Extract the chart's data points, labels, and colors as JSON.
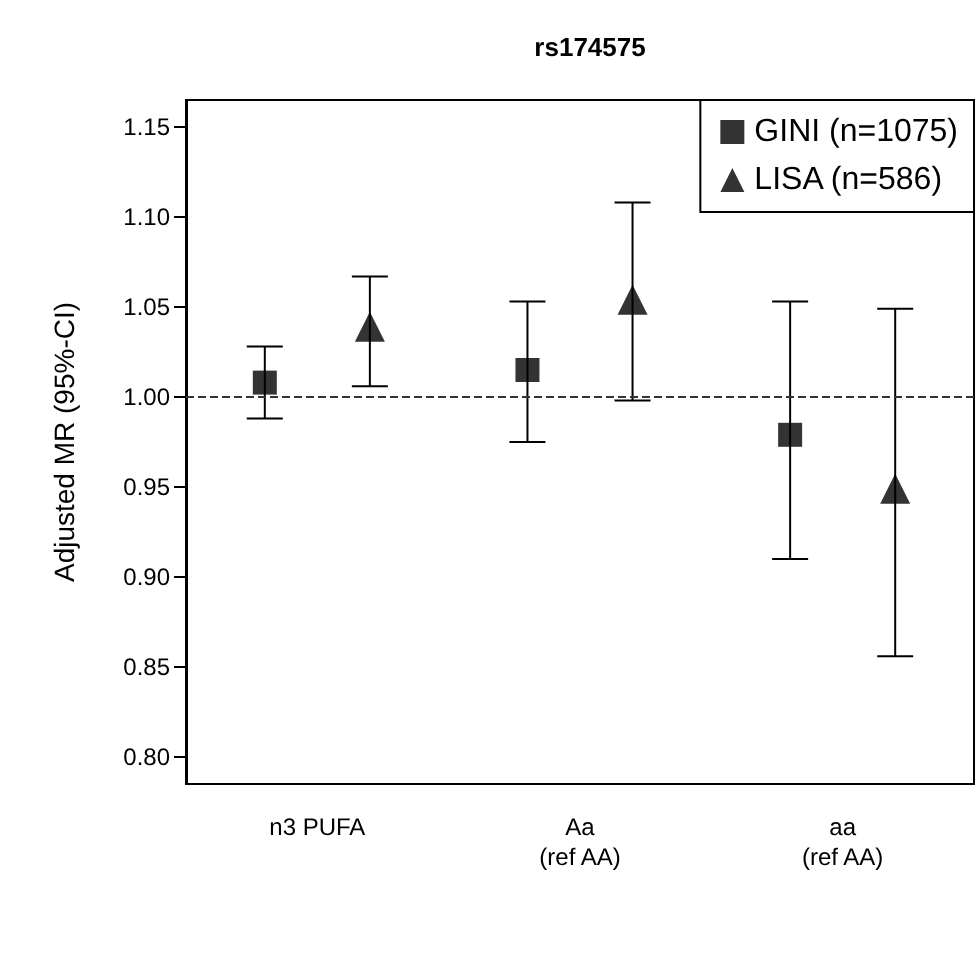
{
  "chart_data": {
    "type": "scatter",
    "title": "rs174575",
    "ylabel": "Adjusted MR (95%-CI)",
    "categories": [
      "n3 PUFA",
      "Aa\n(ref AA)",
      "aa\n(ref AA)"
    ],
    "series": [
      {
        "name": "GINI (n=1075)",
        "color": "#000000",
        "marker": "square",
        "values": [
          1.008,
          1.015,
          0.979
        ],
        "errors": [
          [
            0.988,
            1.028
          ],
          [
            0.975,
            1.053
          ],
          [
            0.91,
            1.053
          ]
        ]
      },
      {
        "name": "LISA (n=586)",
        "color": "#000000",
        "marker": "triangle",
        "values": [
          1.039,
          1.054,
          0.949
        ],
        "errors": [
          [
            1.006,
            1.067
          ],
          [
            0.998,
            1.108
          ],
          [
            0.856,
            1.049
          ]
        ]
      }
    ],
    "ylim": [
      0.785,
      1.165
    ],
    "yticks": [
      {
        "value": 0.8,
        "label": "0.80"
      },
      {
        "value": 0.85,
        "label": "0.85"
      },
      {
        "value": 0.9,
        "label": "0.90"
      },
      {
        "value": 0.95,
        "label": "0.95"
      },
      {
        "value": 1.0,
        "label": "1.00"
      },
      {
        "value": 1.05,
        "label": "1.05"
      },
      {
        "value": 1.1,
        "label": "1.10"
      },
      {
        "value": 1.15,
        "label": "1.15"
      }
    ],
    "ref_lines": [
      {
        "axis": "y",
        "value": 1.0,
        "line_style": "dashed",
        "color": "#333333"
      }
    ],
    "legend": "top right",
    "grid": false
  }
}
